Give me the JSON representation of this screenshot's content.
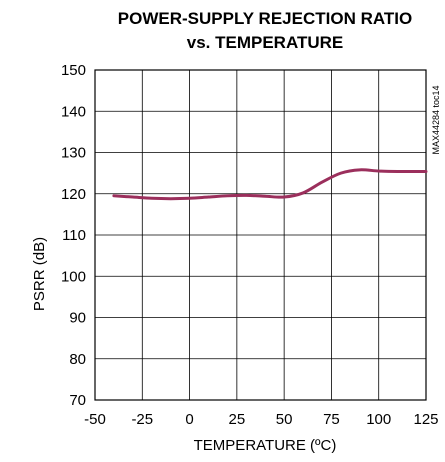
{
  "chart_data": {
    "type": "line",
    "title": "POWER-SUPPLY REJECTION RATIO",
    "subtitle": "vs. TEMPERATURE",
    "xlabel": "TEMPERATURE (ºC)",
    "ylabel": "PSRR (dB)",
    "xlim": [
      -50,
      125
    ],
    "ylim": [
      70,
      150
    ],
    "xticks": [
      -50,
      -25,
      0,
      25,
      50,
      75,
      100,
      125
    ],
    "yticks": [
      70,
      80,
      90,
      100,
      110,
      120,
      130,
      140,
      150
    ],
    "grid": true,
    "legend": "none",
    "annotation": "MAX44284 toc14",
    "line_color": "#9b2f5c",
    "series": [
      {
        "x": [
          -40,
          -30,
          -20,
          -10,
          0,
          10,
          20,
          30,
          40,
          50,
          60,
          70,
          80,
          90,
          100,
          110,
          125
        ],
        "y": [
          119.5,
          119.2,
          118.9,
          118.8,
          118.9,
          119.2,
          119.5,
          119.6,
          119.4,
          119.2,
          120.2,
          122.8,
          125.0,
          125.8,
          125.5,
          125.4,
          125.4
        ]
      }
    ]
  }
}
